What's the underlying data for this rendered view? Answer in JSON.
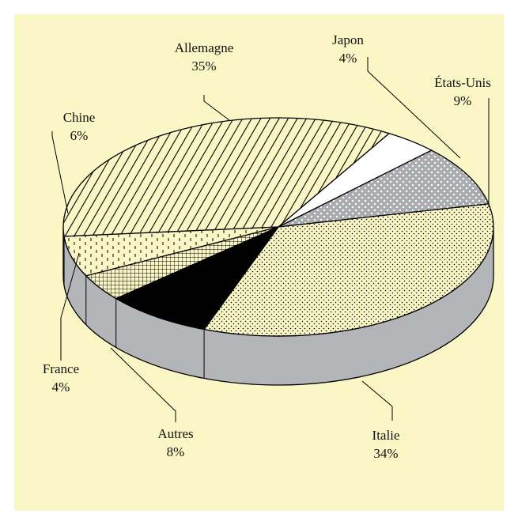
{
  "colors": {
    "background": "#fbf6c5",
    "side": "#b3b5b8",
    "outline": "#000000"
  },
  "chart_data": {
    "type": "pie",
    "title": "",
    "three_d": true,
    "legend": "none",
    "slices": [
      {
        "label": "Allemagne",
        "value": 35,
        "value_label": "35%",
        "pattern": "diagonal-stripes"
      },
      {
        "label": "Japon",
        "value": 4,
        "value_label": "4%",
        "pattern": "white"
      },
      {
        "label": "États-Unis",
        "value": 9,
        "value_label": "9%",
        "pattern": "gray-dots"
      },
      {
        "label": "Italie",
        "value": 34,
        "value_label": "34%",
        "pattern": "fine-dots"
      },
      {
        "label": "Autres",
        "value": 8,
        "value_label": "8%",
        "pattern": "solid-black"
      },
      {
        "label": "France",
        "value": 4,
        "value_label": "4%",
        "pattern": "grid"
      },
      {
        "label": "Chine",
        "value": 6,
        "value_label": "6%",
        "pattern": "dashes"
      }
    ]
  }
}
